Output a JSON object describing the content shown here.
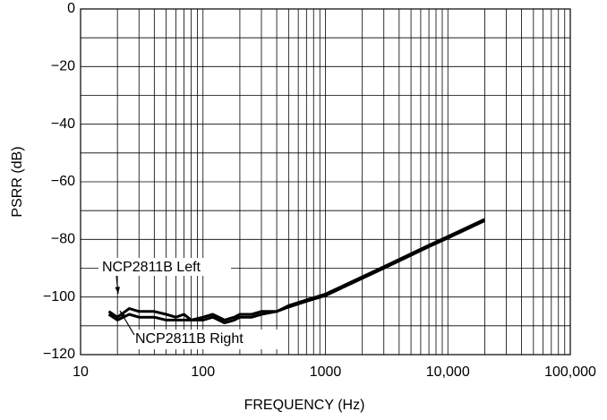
{
  "chart_data": {
    "type": "line",
    "x_label": "FREQUENCY (Hz)",
    "y_label": "PSRR (dB)",
    "x_scale": "log",
    "grid": true,
    "xlim": [
      10,
      100000
    ],
    "xticks": [
      10,
      100,
      1000,
      {
        "value": 10000,
        "label": "10,000"
      },
      {
        "value": 100000,
        "label": "100,000"
      }
    ],
    "x_minor_grid": [
      20,
      30,
      40,
      50,
      60,
      70,
      80,
      90,
      200,
      300,
      400,
      500,
      600,
      700,
      800,
      900,
      2000,
      3000,
      4000,
      5000,
      6000,
      7000,
      8000,
      9000,
      20000,
      30000,
      40000,
      50000,
      60000,
      70000,
      80000,
      90000
    ],
    "ylim": [
      -120,
      0
    ],
    "yticks": [
      {
        "value": -120,
        "label": "−120"
      },
      {
        "value": -100,
        "label": "−100"
      },
      {
        "value": -80,
        "label": "−80"
      },
      {
        "value": -60,
        "label": "−60"
      },
      {
        "value": -40,
        "label": "−40"
      },
      {
        "value": -20,
        "label": "−20"
      },
      0
    ],
    "y_minor_grid": [
      -110,
      -90,
      -70,
      -50,
      -30,
      -10
    ],
    "x": [
      17,
      20,
      25,
      30,
      40,
      50,
      60,
      70,
      80,
      100,
      120,
      150,
      180,
      200,
      250,
      300,
      400,
      500,
      700,
      1000,
      2000,
      3000,
      5000,
      7000,
      10000,
      15000,
      20000
    ],
    "series": [
      {
        "name": "NCP2811B Left",
        "color": "#000000",
        "values": [
          -105,
          -107,
          -104,
          -105,
          -105,
          -106,
          -107,
          -106,
          -108,
          -107,
          -106,
          -108,
          -107,
          -106,
          -106,
          -105,
          -105,
          -103,
          -101,
          -99,
          -93,
          -89.5,
          -85,
          -82,
          -79,
          -75.5,
          -73
        ]
      },
      {
        "name": "NCP2811B Right",
        "color": "#000000",
        "values": [
          -106,
          -108,
          -106,
          -107,
          -107,
          -108,
          -108,
          -108,
          -108,
          -108,
          -107,
          -109,
          -108,
          -107,
          -107,
          -106,
          -105,
          -103.5,
          -101.5,
          -99.5,
          -93.5,
          -90,
          -85.5,
          -82.5,
          -79.5,
          -76,
          -73.5
        ]
      }
    ]
  }
}
